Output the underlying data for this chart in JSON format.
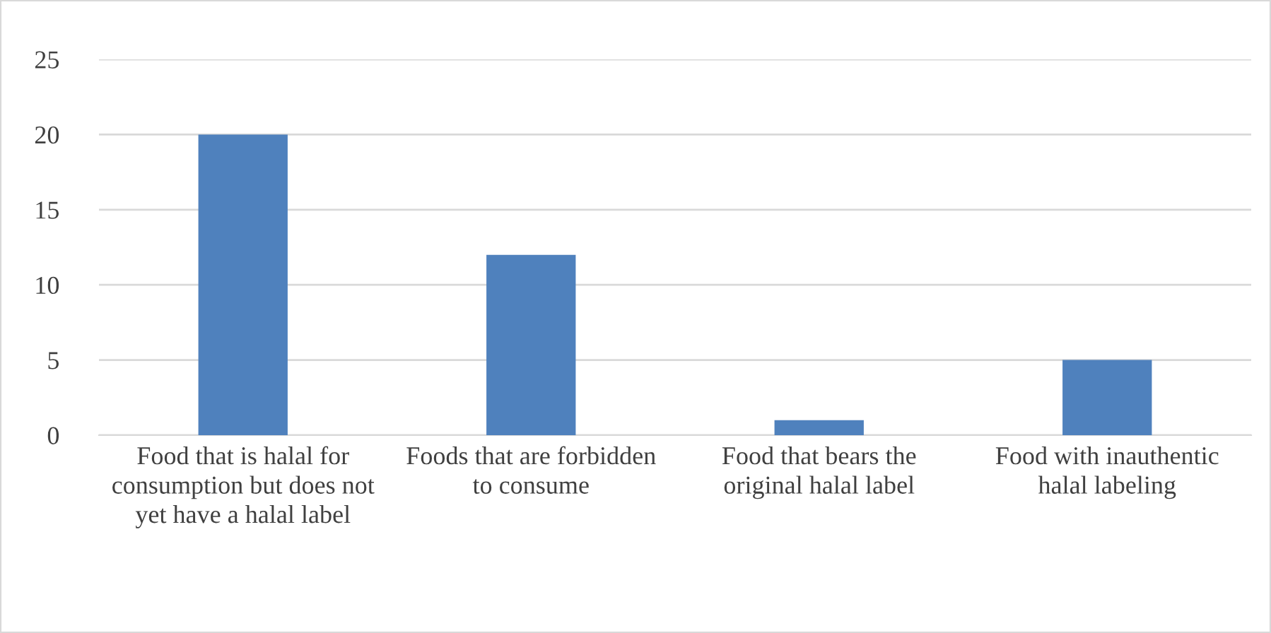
{
  "chart_data": {
    "type": "bar",
    "categories": [
      "Food that is halal for consumption but does not yet have a halal label",
      "Foods that are forbidden to consume",
      "Food that bears the original halal label",
      "Food with inauthentic halal labeling"
    ],
    "values": [
      20,
      12,
      1,
      5
    ],
    "color": "#4f81bd",
    "ylim": [
      0,
      25
    ],
    "yticks": [
      0,
      5,
      10,
      15,
      20,
      25
    ],
    "grid": "y",
    "legend": false
  }
}
